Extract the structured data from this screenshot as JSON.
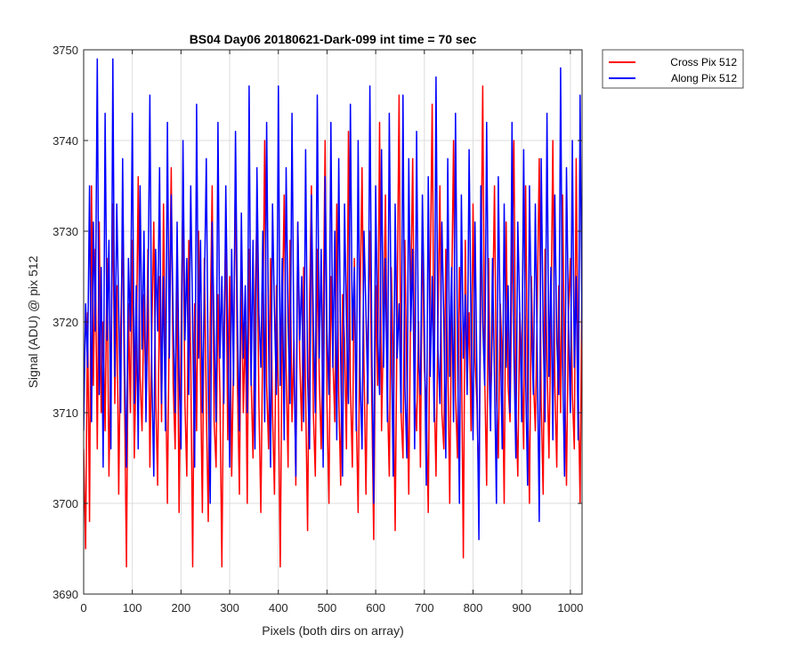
{
  "chart_data": {
    "type": "line",
    "title": "BS04 Day06 20180621-Dark-099 int time = 70 sec",
    "xlabel": "Pixels (both dirs on array)",
    "ylabel": "Signal (ADU) @ pix 512",
    "xlim": [
      0,
      1024
    ],
    "ylim": [
      3690,
      3750
    ],
    "xticks": [
      0,
      100,
      200,
      300,
      400,
      500,
      600,
      700,
      800,
      900,
      1000
    ],
    "yticks": [
      3690,
      3700,
      3710,
      3720,
      3730,
      3740,
      3750
    ],
    "grid": true,
    "legend_position": "outside-top-right",
    "point_spacing": 4,
    "series": [
      {
        "name": "Cross Pix 512",
        "color": "#ff0000",
        "values": [
          3706,
          3695,
          3721,
          3698,
          3735,
          3713,
          3728,
          3706,
          3731,
          3710,
          3720,
          3708,
          3727,
          3703,
          3716,
          3733,
          3711,
          3724,
          3701,
          3719,
          3730,
          3712,
          3693,
          3722,
          3710,
          3729,
          3705,
          3716,
          3736,
          3714,
          3708,
          3723,
          3711,
          3728,
          3704,
          3719,
          3731,
          3712,
          3702,
          3725,
          3709,
          3733,
          3715,
          3700,
          3721,
          3737,
          3713,
          3706,
          3726,
          3699,
          3718,
          3734,
          3711,
          3703,
          3729,
          3716,
          3693,
          3722,
          3708,
          3730,
          3714,
          3699,
          3727,
          3711,
          3698,
          3720,
          3735,
          3709,
          3704,
          3723,
          3712,
          3693,
          3718,
          3730,
          3707,
          3725,
          3703,
          3716,
          3737,
          3713,
          3701,
          3726,
          3710,
          3720,
          3700,
          3728,
          3714,
          3705,
          3722,
          3732,
          3711,
          3699,
          3719,
          3740,
          3713,
          3706,
          3727,
          3710,
          3701,
          3724,
          3712,
          3693,
          3720,
          3734,
          3715,
          3704,
          3729,
          3709,
          3718,
          3702,
          3731,
          3716,
          3708,
          3726,
          3712,
          3697,
          3722,
          3735,
          3710,
          3703,
          3728,
          3714,
          3706,
          3720,
          3740,
          3711,
          3700,
          3725,
          3716,
          3709,
          3733,
          3712,
          3702,
          3723,
          3718,
          3706,
          3741,
          3713,
          3704,
          3727,
          3710,
          3699,
          3722,
          3737,
          3715,
          3701,
          3719,
          3730,
          3711,
          3696,
          3724,
          3713,
          3742,
          3708,
          3720,
          3734,
          3712,
          3703,
          3726,
          3716,
          3697,
          3721,
          3745,
          3710,
          3705,
          3729,
          3714,
          3701,
          3723,
          3738,
          3712,
          3708,
          3720,
          3704,
          3731,
          3715,
          3711,
          3699,
          3725,
          3744,
          3713,
          3703,
          3720,
          3735,
          3710,
          3706,
          3728,
          3716,
          3700,
          3722,
          3740,
          3712,
          3705,
          3726,
          3718,
          3694,
          3729,
          3713,
          3721,
          3708,
          3733,
          3716,
          3711,
          3701,
          3724,
          3746,
          3714,
          3702,
          3727,
          3710,
          3720,
          3735,
          3712,
          3705,
          3722,
          3716,
          3700,
          3731,
          3713,
          3709,
          3726,
          3740,
          3711,
          3703,
          3721,
          3716,
          3706,
          3735,
          3712,
          3700,
          3725,
          3714,
          3708,
          3722,
          3738,
          3711,
          3701,
          3728,
          3716,
          3705,
          3720,
          3740,
          3713,
          3704,
          3724,
          3710,
          3734,
          3715,
          3702,
          3721,
          3727,
          3712,
          3706,
          3738,
          3713,
          3700,
          3726,
          3715,
          3709,
          3723,
          3712,
          3741,
          3710,
          3694,
          3722,
          3731,
          3716,
          3708,
          3727,
          3712,
          3702,
          3725,
          3714,
          3744,
          3711,
          3720,
          3733,
          3713,
          3705,
          3721,
          3699,
          3740,
          3716,
          3712,
          3728,
          3710,
          3703,
          3723,
          3714,
          3698,
          3736,
          3712,
          3706,
          3726,
          3716,
          3701,
          3724,
          3713,
          3745,
          3710,
          3707,
          3720,
          3734,
          3714,
          3704,
          3729,
          3712,
          3711,
          3722,
          3738,
          3716,
          3700,
          3725,
          3713,
          3707,
          3728,
          3694,
          3721,
          3716,
          3740,
          3712,
          3703,
          3726,
          3715,
          3709,
          3731,
          3713,
          3718,
          3705,
          3724,
          3744,
          3711,
          3701,
          3728,
          3716,
          3719,
          3738,
          3714,
          3698,
          3726,
          3713,
          3710,
          3733,
          3717,
          3703,
          3727,
          3712,
          3720,
          3749,
          3713,
          3719,
          3733,
          3711,
          3724
        ],
        "sample_step": 4
      },
      {
        "name": "Along Pix 512",
        "color": "#0000ff",
        "values": [
          3708,
          3722,
          3715,
          3735,
          3709,
          3731,
          3719,
          3749,
          3712,
          3726,
          3704,
          3743,
          3718,
          3729,
          3706,
          3749,
          3714,
          3733,
          3721,
          3710,
          3738,
          3716,
          3704,
          3727,
          3719,
          3743,
          3711,
          3724,
          3706,
          3735,
          3717,
          3730,
          3709,
          3722,
          3745,
          3714,
          3703,
          3728,
          3719,
          3737,
          3711,
          3725,
          3708,
          3742,
          3716,
          3734,
          3720,
          3710,
          3731,
          3714,
          3706,
          3740,
          3718,
          3727,
          3712,
          3735,
          3720,
          3704,
          3744,
          3716,
          3729,
          3710,
          3723,
          3738,
          3713,
          3700,
          3731,
          3719,
          3709,
          3742,
          3716,
          3725,
          3711,
          3735,
          3719,
          3704,
          3728,
          3713,
          3741,
          3720,
          3708,
          3732,
          3716,
          3724,
          3710,
          3746,
          3713,
          3729,
          3706,
          3737,
          3721,
          3715,
          3730,
          3709,
          3742,
          3718,
          3704,
          3733,
          3721,
          3712,
          3746,
          3713,
          3727,
          3707,
          3737,
          3720,
          3711,
          3743,
          3716,
          3703,
          3731,
          3718,
          3725,
          3709,
          3739,
          3714,
          3706,
          3734,
          3720,
          3710,
          3745,
          3716,
          3728,
          3704,
          3736,
          3719,
          3712,
          3742,
          3715,
          3730,
          3707,
          3738,
          3716,
          3703,
          3733,
          3720,
          3711,
          3744,
          3718,
          3726,
          3708,
          3740,
          3714,
          3706,
          3730,
          3721,
          3711,
          3746,
          3717,
          3700,
          3735,
          3719,
          3712,
          3739,
          3715,
          3727,
          3709,
          3743,
          3719,
          3703,
          3733,
          3716,
          3722,
          3710,
          3745,
          3713,
          3705,
          3738,
          3719,
          3728,
          3706,
          3741,
          3716,
          3712,
          3734,
          3720,
          3702,
          3736,
          3714,
          3725,
          3709,
          3747,
          3717,
          3711,
          3731,
          3720,
          3705,
          3738,
          3714,
          3726,
          3709,
          3743,
          3718,
          3700,
          3734,
          3716,
          3723,
          3712,
          3739,
          3719,
          3707,
          3731,
          3714,
          3696,
          3735,
          3720,
          3713,
          3742,
          3717,
          3708,
          3727,
          3714,
          3700,
          3736,
          3719,
          3706,
          3733,
          3715,
          3724,
          3710,
          3742,
          3717,
          3705,
          3731,
          3721,
          3709,
          3739,
          3714,
          3702,
          3735,
          3720,
          3712,
          3733,
          3716,
          3698,
          3738,
          3719,
          3709,
          3743,
          3714,
          3726,
          3707,
          3734,
          3718,
          3712,
          3748,
          3716,
          3703,
          3737,
          3720,
          3710,
          3740,
          3715,
          3725,
          3707,
          3745,
          3718,
          3711,
          3732,
          3714,
          3728,
          3709,
          3744,
          3718,
          3704,
          3730,
          3721,
          3713,
          3737,
          3716,
          3708,
          3742,
          3719,
          3700,
          3733,
          3714,
          3722,
          3710,
          3748,
          3717,
          3707,
          3735,
          3713,
          3723,
          3705,
          3743,
          3719,
          3711,
          3731,
          3716,
          3704,
          3737,
          3719,
          3712,
          3746,
          3715,
          3709,
          3727,
          3720,
          3702,
          3740,
          3716,
          3725,
          3710,
          3733,
          3719,
          3706,
          3745,
          3717,
          3711,
          3736,
          3712,
          3723,
          3709,
          3742,
          3718,
          3704,
          3734,
          3716,
          3726,
          3708,
          3739,
          3719,
          3711,
          3744,
          3715,
          3707,
          3732,
          3720,
          3700,
          3738,
          3716,
          3728,
          3710,
          3735,
          3719,
          3706,
          3743,
          3717,
          3711,
          3736,
          3714,
          3724,
          3708,
          3731,
          3716,
          3713,
          3736
        ],
        "sample_step": 4
      }
    ]
  }
}
